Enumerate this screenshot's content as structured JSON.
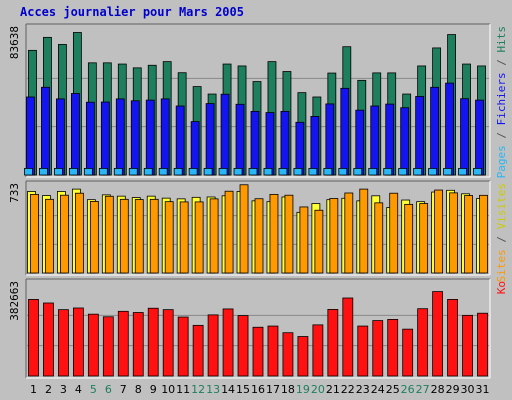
{
  "chart_data": {
    "type": "bar",
    "title": "Acces journalier pour Mars 2005",
    "categories": [
      "1",
      "2",
      "3",
      "4",
      "5",
      "6",
      "7",
      "8",
      "9",
      "10",
      "11",
      "12",
      "13",
      "14",
      "15",
      "16",
      "17",
      "18",
      "19",
      "20",
      "21",
      "22",
      "23",
      "24",
      "25",
      "26",
      "27",
      "28",
      "29",
      "30",
      "31"
    ],
    "weekend_days": [
      "5",
      "6",
      "12",
      "13",
      "19",
      "20",
      "26",
      "27"
    ],
    "colors": {
      "background": "#c0c0c0",
      "title": "#0000cc",
      "hits": "#1e7f5e",
      "files": "#1414f0",
      "pages": "#29b6f6",
      "visits": "#ffff33",
      "sites": "#ff9900",
      "ko": "#ff1111",
      "weekday_label": "#000000",
      "weekend_label": "#1e7f5e",
      "gridline": "#888888"
    },
    "panels": [
      {
        "id": "top",
        "axis_max_label": "83638",
        "ylim": [
          0,
          83638
        ],
        "side_labels": [
          {
            "text": "Pages",
            "color": "#29b6f6"
          },
          {
            "text": " / ",
            "color": "#555555"
          },
          {
            "text": "Fichiers",
            "color": "#1414f0"
          },
          {
            "text": " / ",
            "color": "#555555"
          },
          {
            "text": "Hits",
            "color": "#1e7f5e"
          }
        ],
        "series": [
          {
            "name": "Hits",
            "color": "#1e7f5e",
            "values": [
              71900,
              79400,
              75300,
              82200,
              64700,
              64700,
              64000,
              61800,
              63300,
              65400,
              59000,
              51000,
              46700,
              64000,
              62900,
              53900,
              65400,
              59700,
              47500,
              45000,
              58800,
              74000,
              54600,
              58900,
              58900,
              46700,
              62900,
              73300,
              81000,
              64000,
              62900
            ]
          },
          {
            "name": "Fichiers",
            "color": "#1414f0",
            "values": [
              45000,
              50600,
              43900,
              47000,
              42000,
              42100,
              43900,
              42800,
              43200,
              43900,
              39800,
              30800,
              41200,
              46600,
              40800,
              36700,
              36000,
              36700,
              30400,
              33800,
              41000,
              50000,
              37400,
              39800,
              40900,
              38800,
              45300,
              50600,
              53000,
              44000,
              43200
            ]
          },
          {
            "name": "Pages",
            "color": "#29b6f6",
            "values": [
              3800,
              3800,
              3800,
              3800,
              3800,
              3800,
              3800,
              3800,
              3800,
              3800,
              3800,
              3800,
              3800,
              3800,
              3800,
              3800,
              3800,
              3800,
              3800,
              3800,
              3800,
              3800,
              3800,
              3800,
              3800,
              3800,
              3800,
              3800,
              3800,
              3800,
              3800
            ]
          }
        ]
      },
      {
        "id": "middle",
        "axis_max_label": "733",
        "ylim": [
          0,
          733
        ],
        "side_labels": [
          {
            "text": "Sites",
            "color": "#ff9900"
          },
          {
            "text": " / ",
            "color": "#555555"
          },
          {
            "text": "Visites",
            "color": "#cccc00"
          }
        ],
        "series": [
          {
            "name": "Visites",
            "color": "#ffff33",
            "values": [
              695,
              660,
              695,
              715,
              625,
              666,
              655,
              643,
              655,
              638,
              632,
              645,
              648,
              658,
              695,
              615,
              608,
              648,
              517,
              592,
              625,
              637,
              615,
              658,
              558,
              622,
              608,
              690,
              705,
              675,
              635
            ]
          },
          {
            "name": "Sites",
            "color": "#ff9900",
            "values": [
              670,
              628,
              663,
              680,
              610,
              654,
              628,
              626,
              628,
              608,
              606,
              606,
              632,
              697,
              752,
              633,
              670,
              663,
              563,
              535,
              635,
              682,
              715,
              598,
              680,
              585,
              592,
              707,
              683,
              660,
              662
            ]
          }
        ]
      },
      {
        "id": "bottom",
        "axis_max_label": "382663",
        "ylim": [
          0,
          382663
        ],
        "side_labels": [
          {
            "text": "Ko",
            "color": "#ff1111"
          }
        ],
        "series": [
          {
            "name": "Ko",
            "color": "#ff1111",
            "values": [
              322000,
              307000,
              279000,
              286000,
              260000,
              249000,
              272000,
              267000,
              285000,
              279000,
              248000,
              213000,
              257000,
              282000,
              254000,
              205000,
              210000,
              182000,
              166000,
              215000,
              280000,
              328000,
              210000,
              233000,
              238000,
              197000,
              283000,
              355000,
              322000,
              255000,
              264000
            ]
          }
        ]
      }
    ]
  }
}
